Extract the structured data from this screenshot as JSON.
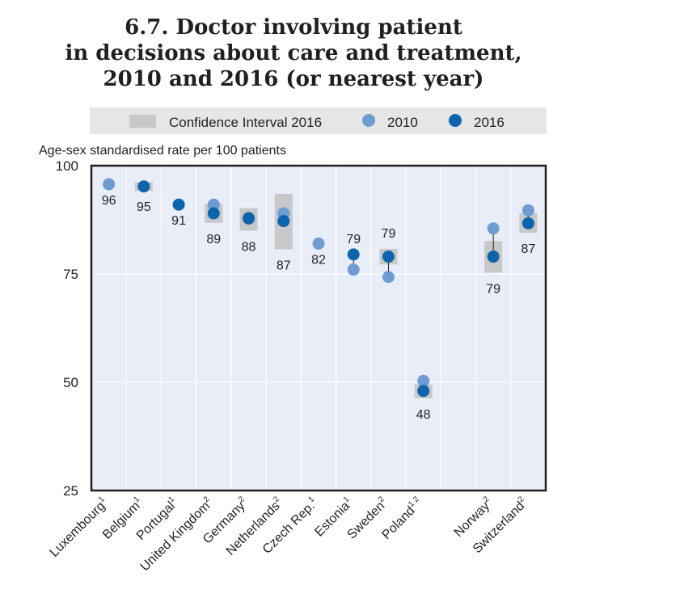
{
  "title_lines": [
    "6.7.  Doctor involving patient",
    "in decisions about care and treatment,",
    "2010 and 2016 (or nearest year)"
  ],
  "legend": {
    "ci": "Confidence Interval 2016",
    "s2010": "2010",
    "s2016": "2016"
  },
  "colors": {
    "plot_bg": "#e9edf8",
    "legend_bg": "#e6e6e6",
    "ci": "#c8c8c8",
    "s2010": "#6f9bd3",
    "s2016": "#0b64ac"
  },
  "chart_data": {
    "type": "scatter",
    "ylabel": "Age-sex standardised rate per 100 patients",
    "ylim": [
      25,
      100
    ],
    "yticks": [
      25,
      50,
      75,
      100
    ],
    "grid": true,
    "legend_position": "top",
    "categories": [
      {
        "name": "Luxembourg",
        "sup": "1"
      },
      {
        "name": "Belgium",
        "sup": "1"
      },
      {
        "name": "Portugal",
        "sup": "1"
      },
      {
        "name": "United Kingdom",
        "sup": "2"
      },
      {
        "name": "Germany",
        "sup": "2"
      },
      {
        "name": "Netherlands",
        "sup": "2"
      },
      {
        "name": "Czech Rep.",
        "sup": "1"
      },
      {
        "name": "Estonia",
        "sup": "1"
      },
      {
        "name": "Sweden",
        "sup": "2"
      },
      {
        "name": "Poland",
        "sup": "1 2"
      },
      {
        "name": "",
        "sup": ""
      },
      {
        "name": "Norway",
        "sup": "2"
      },
      {
        "name": "Switzerland",
        "sup": "2"
      }
    ],
    "series": [
      {
        "name": "2010",
        "values": [
          95.7,
          null,
          null,
          91.0,
          88.0,
          89.0,
          82.0,
          76.0,
          74.3,
          50.3,
          null,
          85.5,
          89.7
        ]
      },
      {
        "name": "2016",
        "values": [
          null,
          95.2,
          91.0,
          89.0,
          87.8,
          87.2,
          null,
          79.5,
          79.0,
          48.0,
          null,
          79.0,
          86.7
        ]
      }
    ],
    "ci_2016": [
      null,
      [
        94.2,
        96.2
      ],
      null,
      [
        86.8,
        91.2
      ],
      [
        85.0,
        90.2
      ],
      [
        80.7,
        93.5
      ],
      null,
      null,
      [
        77.2,
        80.8
      ],
      [
        46.3,
        49.5
      ],
      null,
      [
        75.3,
        82.6
      ],
      [
        84.5,
        89.0
      ]
    ],
    "data_labels": [
      {
        "index": 0,
        "text": "96",
        "position": "below"
      },
      {
        "index": 1,
        "text": "95",
        "position": "below"
      },
      {
        "index": 2,
        "text": "91",
        "position": "below"
      },
      {
        "index": 3,
        "text": "89",
        "position": "below"
      },
      {
        "index": 4,
        "text": "88",
        "position": "below"
      },
      {
        "index": 5,
        "text": "87",
        "position": "below"
      },
      {
        "index": 6,
        "text": "82",
        "position": "below"
      },
      {
        "index": 7,
        "text": "79",
        "position": "above"
      },
      {
        "index": 8,
        "text": "79",
        "position": "above"
      },
      {
        "index": 9,
        "text": "48",
        "position": "below"
      },
      {
        "index": 11,
        "text": "79",
        "position": "below"
      },
      {
        "index": 12,
        "text": "87",
        "position": "below"
      }
    ]
  }
}
